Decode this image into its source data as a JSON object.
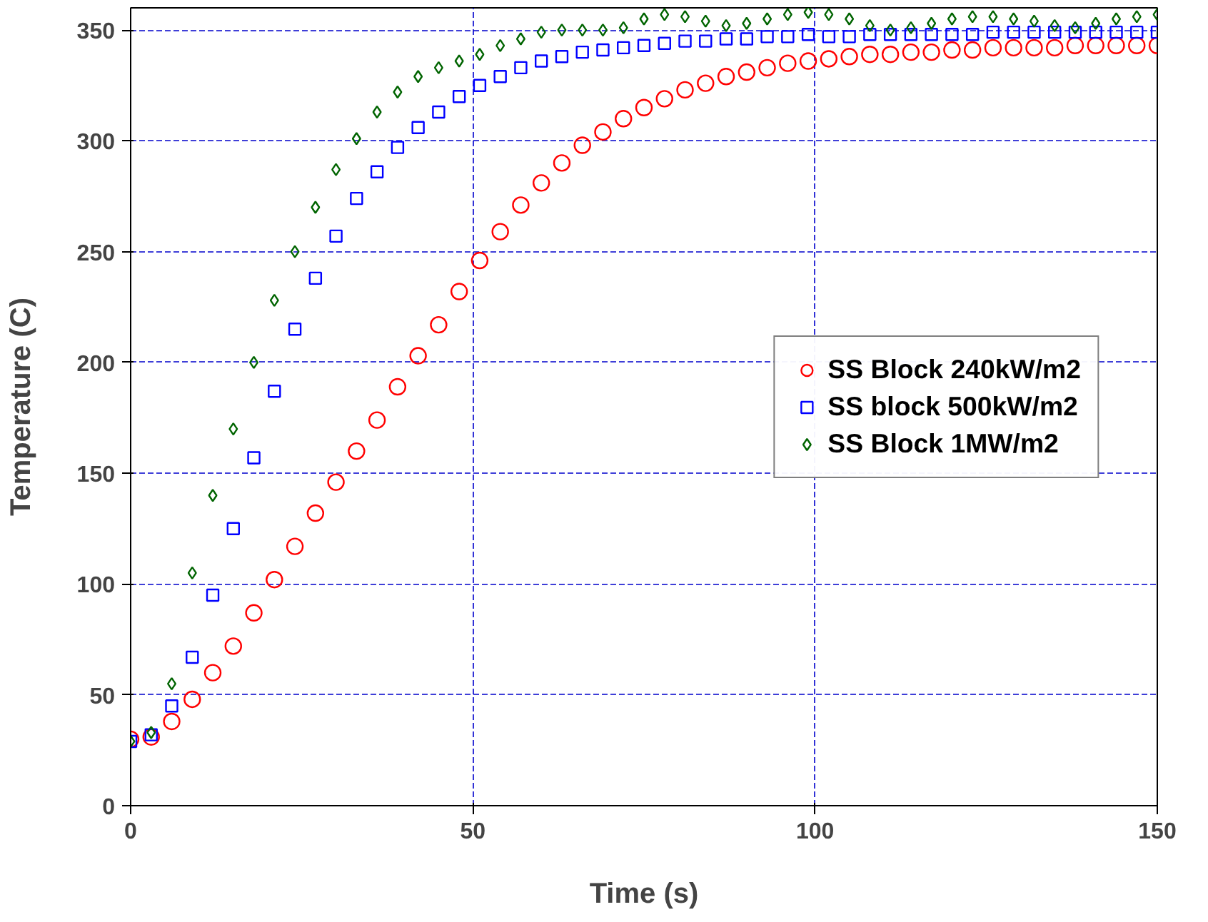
{
  "chart_data": {
    "type": "scatter",
    "xlabel": "Time (s)",
    "ylabel": "Temperature (C)",
    "xlim": [
      0,
      150
    ],
    "ylim": [
      0,
      360
    ],
    "xticks": [
      0,
      50,
      100,
      150
    ],
    "yticks": [
      0,
      50,
      100,
      150,
      200,
      250,
      300,
      350
    ],
    "grid": true,
    "legend": "right",
    "x": [
      0,
      3,
      6,
      9,
      12,
      15,
      18,
      21,
      24,
      27,
      30,
      33,
      36,
      39,
      42,
      45,
      48,
      51,
      54,
      57,
      60,
      63,
      66,
      69,
      72,
      75,
      78,
      81,
      84,
      87,
      90,
      93,
      96,
      99,
      102,
      105,
      108,
      111,
      114,
      117,
      120,
      123,
      126,
      129,
      132,
      135,
      138,
      141,
      144,
      147,
      150
    ],
    "series": [
      {
        "name": "SS Block 240kW/m2",
        "color": "#ff0000",
        "marker": "circle",
        "values": [
          30,
          31,
          38,
          48,
          60,
          72,
          87,
          102,
          117,
          132,
          146,
          160,
          174,
          189,
          203,
          217,
          232,
          246,
          259,
          271,
          281,
          290,
          298,
          304,
          310,
          315,
          319,
          323,
          326,
          329,
          331,
          333,
          335,
          336,
          337,
          338,
          339,
          339,
          340,
          340,
          341,
          341,
          342,
          342,
          342,
          342,
          343,
          343,
          343,
          343,
          343
        ]
      },
      {
        "name": "SS block 500kW/m2",
        "color": "#0000ff",
        "marker": "square",
        "values": [
          29,
          32,
          45,
          67,
          95,
          125,
          157,
          187,
          215,
          238,
          257,
          274,
          286,
          297,
          306,
          313,
          320,
          325,
          329,
          333,
          336,
          338,
          340,
          341,
          342,
          343,
          344,
          345,
          345,
          346,
          346,
          347,
          347,
          348,
          347,
          347,
          348,
          348,
          348,
          348,
          348,
          348,
          349,
          349,
          349,
          349,
          349,
          349,
          349,
          349,
          349
        ]
      },
      {
        "name": "SS Block 1MW/m2",
        "color": "#006400",
        "marker": "diamond",
        "values": [
          29,
          33,
          55,
          105,
          140,
          170,
          200,
          228,
          250,
          270,
          287,
          301,
          313,
          322,
          329,
          333,
          336,
          339,
          343,
          346,
          349,
          350,
          350,
          350,
          351,
          355,
          357,
          356,
          354,
          352,
          353,
          355,
          357,
          358,
          357,
          355,
          352,
          350,
          351,
          353,
          355,
          356,
          356,
          355,
          354,
          352,
          351,
          353,
          355,
          356,
          357
        ]
      }
    ]
  }
}
